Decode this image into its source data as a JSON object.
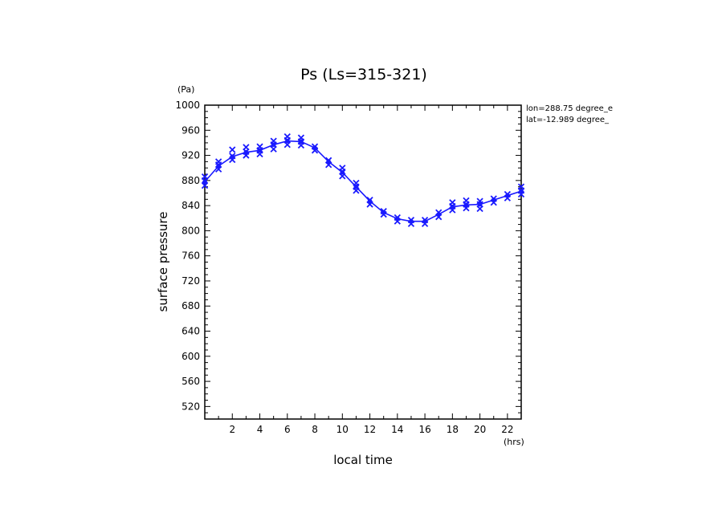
{
  "chart_data": {
    "type": "line",
    "title": "Ps (Ls=315-321)",
    "xlabel": "local time",
    "ylabel": "surface pressure",
    "x_unit": "(hrs)",
    "y_unit": "(Pa)",
    "xlim": [
      0,
      23
    ],
    "ylim": [
      500,
      1000
    ],
    "x_ticks": [
      2,
      4,
      6,
      8,
      10,
      12,
      14,
      16,
      18,
      20,
      22
    ],
    "y_ticks": [
      520,
      560,
      600,
      640,
      680,
      720,
      760,
      800,
      840,
      880,
      920,
      960,
      1000
    ],
    "annotations": [
      "lon=288.75 degree_e",
      "lat=-12.989 degree_"
    ],
    "color": "#1a1aff",
    "series": [
      {
        "x": [
          0,
          1,
          2,
          3,
          4,
          5,
          6,
          7,
          8,
          9,
          10,
          11,
          12,
          13,
          14,
          15,
          16,
          17,
          18,
          19,
          20,
          21,
          22,
          23
        ],
        "values": [
          878,
          903,
          918,
          925,
          928,
          937,
          943,
          942,
          932,
          910,
          893,
          870,
          847,
          829,
          819,
          815,
          815,
          826,
          838,
          841,
          842,
          849,
          856,
          863
        ]
      }
    ],
    "scatter_markers": {
      "x": [
        0,
        0,
        0,
        1,
        1,
        1,
        2,
        2,
        2,
        3,
        3,
        3,
        4,
        4,
        4,
        5,
        5,
        5,
        6,
        6,
        6,
        7,
        7,
        7,
        8,
        8,
        9,
        9,
        10,
        10,
        10,
        11,
        11,
        11,
        12,
        12,
        13,
        13,
        14,
        14,
        15,
        15,
        16,
        16,
        17,
        17,
        18,
        18,
        18,
        19,
        19,
        19,
        20,
        20,
        20,
        21,
        21,
        22,
        22,
        23,
        23,
        23
      ],
      "values": [
        872,
        880,
        886,
        898,
        905,
        910,
        913,
        919,
        929,
        920,
        926,
        933,
        922,
        928,
        934,
        930,
        937,
        943,
        937,
        944,
        950,
        936,
        942,
        948,
        928,
        934,
        905,
        912,
        887,
        894,
        900,
        864,
        870,
        876,
        842,
        849,
        826,
        831,
        815,
        821,
        811,
        817,
        811,
        817,
        822,
        829,
        833,
        839,
        845,
        836,
        842,
        848,
        835,
        842,
        847,
        845,
        851,
        852,
        858,
        858,
        864,
        870
      ]
    }
  }
}
